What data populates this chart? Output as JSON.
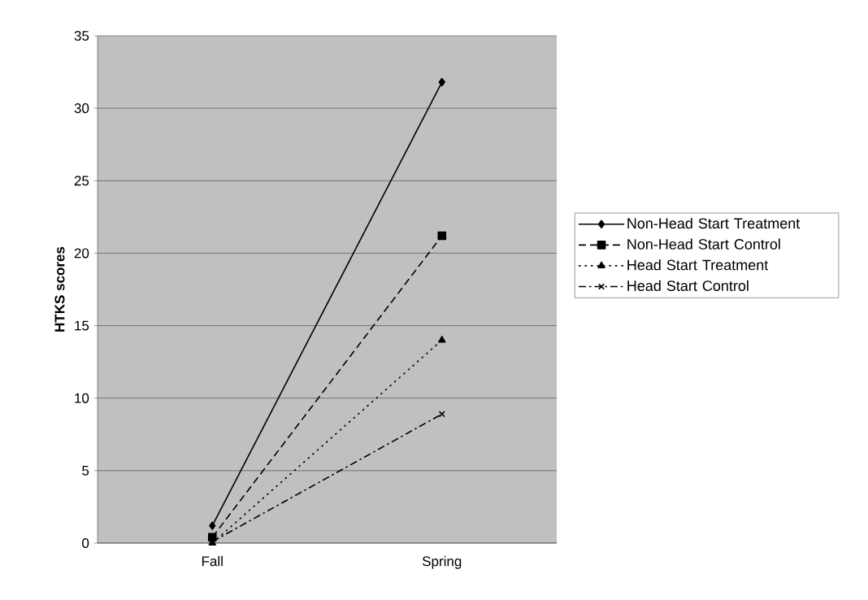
{
  "chart_data": {
    "type": "line",
    "ylabel": "HTKS scores",
    "categories": [
      "Fall",
      "Spring"
    ],
    "series": [
      {
        "name": "Non-Head Start Treatment",
        "color": "#000000",
        "marker": "diamond",
        "line_style": "solid",
        "values": [
          1.2,
          31.8
        ]
      },
      {
        "name": "Non-Head Start Control",
        "color": "#000000",
        "marker": "square",
        "line_style": "dashed",
        "values": [
          0.4,
          21.2
        ]
      },
      {
        "name": "Head Start Treatment",
        "color": "#000000",
        "marker": "triangle",
        "line_style": "dotted",
        "values": [
          0.0,
          14.0
        ]
      },
      {
        "name": "Head Start Control",
        "color": "#000000",
        "marker": "cross",
        "line_style": "dashdot",
        "values": [
          0.1,
          8.9
        ]
      }
    ],
    "ylim": [
      0,
      35
    ],
    "yticks": [
      0,
      5,
      10,
      15,
      20,
      25,
      30,
      35
    ],
    "grid": "y",
    "legend": "right"
  }
}
